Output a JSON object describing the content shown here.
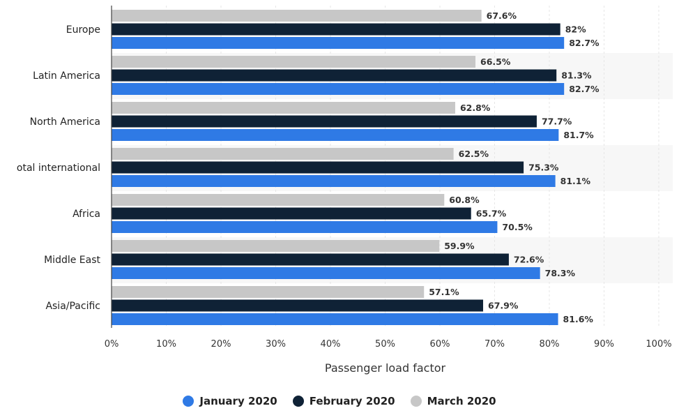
{
  "chart_data": {
    "type": "bar",
    "orientation": "horizontal",
    "categories": [
      "Europe",
      "Latin America",
      "North America",
      "otal international",
      "Africa",
      "Middle East",
      "Asia/Pacific"
    ],
    "series": [
      {
        "name": "March 2020",
        "color": "#c7c7c7",
        "values": [
          67.6,
          66.5,
          62.8,
          62.5,
          60.8,
          59.9,
          57.1
        ],
        "labels": [
          "67.6%",
          "66.5%",
          "62.8%",
          "62.5%",
          "60.8%",
          "59.9%",
          "57.1%"
        ]
      },
      {
        "name": "February 2020",
        "color": "#0f2236",
        "values": [
          82,
          81.3,
          77.7,
          75.3,
          65.7,
          72.6,
          67.9
        ],
        "labels": [
          "82%",
          "81.3%",
          "77.7%",
          "75.3%",
          "65.7%",
          "72.6%",
          "67.9%"
        ]
      },
      {
        "name": "January 2020",
        "color": "#2f7ae5",
        "values": [
          82.7,
          82.7,
          81.7,
          81.1,
          70.5,
          78.3,
          81.6
        ],
        "labels": [
          "82.7%",
          "82.7%",
          "81.7%",
          "81.1%",
          "70.5%",
          "78.3%",
          "81.6%"
        ]
      }
    ],
    "xlabel": "Passenger load factor",
    "xlim": [
      0,
      100
    ],
    "x_ticks": [
      "0%",
      "10%",
      "20%",
      "30%",
      "40%",
      "50%",
      "60%",
      "70%",
      "80%",
      "90%",
      "100%"
    ],
    "grid": true,
    "legend_position": "bottom"
  },
  "legend": [
    {
      "label": "January 2020",
      "color": "#2f7ae5"
    },
    {
      "label": "February 2020",
      "color": "#0f2236"
    },
    {
      "label": "March 2020",
      "color": "#c7c7c7"
    }
  ]
}
